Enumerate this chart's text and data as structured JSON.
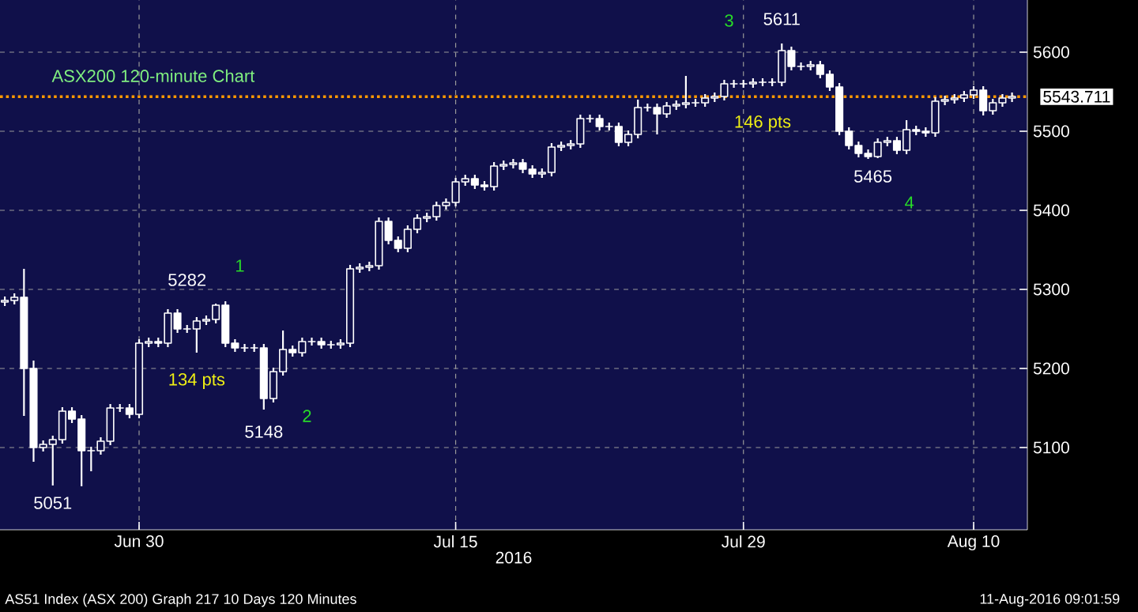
{
  "chart_data": {
    "type": "candlestick",
    "title": "ASX200 120-minute Chart",
    "xlabel": "2016",
    "color": "#ffffff",
    "grid": true,
    "categories": [
      null,
      null,
      null,
      null,
      null,
      null,
      null,
      null,
      null,
      null,
      null,
      null,
      null,
      null,
      "Jun 30",
      null,
      null,
      null,
      null,
      null,
      null,
      null,
      null,
      null,
      null,
      null,
      null,
      null,
      null,
      null,
      null,
      null,
      null,
      null,
      null,
      null,
      null,
      null,
      null,
      null,
      null,
      null,
      null,
      null,
      null,
      null,
      null,
      "Jul 15",
      null,
      null,
      null,
      null,
      null,
      null,
      null,
      null,
      null,
      null,
      null,
      null,
      null,
      null,
      null,
      null,
      null,
      null,
      null,
      null,
      null,
      null,
      null,
      null,
      null,
      null,
      null,
      null,
      null,
      "Jul 29",
      null,
      null,
      null,
      null,
      null,
      null,
      null,
      null,
      null,
      null,
      null,
      null,
      null,
      null,
      null,
      null,
      null,
      null,
      null,
      null,
      null,
      null,
      null,
      "Aug 10",
      null,
      null,
      null,
      null
    ],
    "ohlc": [
      [
        5284,
        5291,
        5279,
        5286
      ],
      [
        5286,
        5295,
        5281,
        5290
      ],
      [
        5290,
        5326,
        5140,
        5200
      ],
      [
        5200,
        5210,
        5082,
        5100
      ],
      [
        5100,
        5109,
        5095,
        5104
      ],
      [
        5104,
        5115,
        5052,
        5110
      ],
      [
        5110,
        5151,
        5105,
        5146
      ],
      [
        5146,
        5151,
        5131,
        5136
      ],
      [
        5136,
        5141,
        5051,
        5096
      ],
      [
        5096,
        5101,
        5070,
        5096
      ],
      [
        5096,
        5113,
        5091,
        5108
      ],
      [
        5108,
        5155,
        5103,
        5150
      ],
      [
        5150,
        5155,
        5145,
        5150
      ],
      [
        5150,
        5155,
        5137,
        5142
      ],
      [
        5142,
        5237,
        5137,
        5232
      ],
      [
        5232,
        5239,
        5227,
        5234
      ],
      [
        5234,
        5239,
        5227,
        5232
      ],
      [
        5232,
        5275,
        5227,
        5270
      ],
      [
        5270,
        5275,
        5245,
        5250
      ],
      [
        5250,
        5255,
        5245,
        5250
      ],
      [
        5250,
        5265,
        5220,
        5260
      ],
      [
        5260,
        5267,
        5255,
        5262
      ],
      [
        5262,
        5282,
        5257,
        5280
      ],
      [
        5280,
        5285,
        5227,
        5232
      ],
      [
        5232,
        5237,
        5221,
        5226
      ],
      [
        5226,
        5231,
        5221,
        5226
      ],
      [
        5226,
        5231,
        5221,
        5226
      ],
      [
        5226,
        5231,
        5148,
        5162
      ],
      [
        5162,
        5201,
        5157,
        5196
      ],
      [
        5196,
        5248,
        5191,
        5224
      ],
      [
        5224,
        5229,
        5215,
        5220
      ],
      [
        5220,
        5239,
        5215,
        5234
      ],
      [
        5234,
        5239,
        5229,
        5234
      ],
      [
        5234,
        5239,
        5225,
        5230
      ],
      [
        5230,
        5235,
        5225,
        5230
      ],
      [
        5230,
        5237,
        5225,
        5232
      ],
      [
        5232,
        5331,
        5227,
        5326
      ],
      [
        5326,
        5333,
        5321,
        5328
      ],
      [
        5328,
        5335,
        5323,
        5330
      ],
      [
        5330,
        5391,
        5325,
        5386
      ],
      [
        5386,
        5391,
        5357,
        5362
      ],
      [
        5362,
        5367,
        5347,
        5352
      ],
      [
        5352,
        5381,
        5347,
        5376
      ],
      [
        5376,
        5395,
        5371,
        5390
      ],
      [
        5390,
        5397,
        5385,
        5392
      ],
      [
        5392,
        5411,
        5387,
        5406
      ],
      [
        5406,
        5415,
        5401,
        5410
      ],
      [
        5410,
        5441,
        5405,
        5436
      ],
      [
        5436,
        5445,
        5431,
        5440
      ],
      [
        5440,
        5445,
        5427,
        5432
      ],
      [
        5432,
        5437,
        5425,
        5430
      ],
      [
        5430,
        5461,
        5425,
        5456
      ],
      [
        5456,
        5463,
        5451,
        5458
      ],
      [
        5458,
        5465,
        5453,
        5460
      ],
      [
        5460,
        5465,
        5447,
        5452
      ],
      [
        5452,
        5457,
        5441,
        5446
      ],
      [
        5446,
        5453,
        5441,
        5448
      ],
      [
        5448,
        5485,
        5443,
        5480
      ],
      [
        5480,
        5487,
        5475,
        5482
      ],
      [
        5482,
        5489,
        5477,
        5484
      ],
      [
        5484,
        5521,
        5479,
        5516
      ],
      [
        5516,
        5521,
        5511,
        5516
      ],
      [
        5516,
        5521,
        5501,
        5506
      ],
      [
        5506,
        5511,
        5501,
        5506
      ],
      [
        5506,
        5511,
        5481,
        5486
      ],
      [
        5486,
        5501,
        5481,
        5496
      ],
      [
        5496,
        5540,
        5491,
        5530
      ],
      [
        5530,
        5535,
        5525,
        5530
      ],
      [
        5530,
        5535,
        5496,
        5522
      ],
      [
        5522,
        5537,
        5517,
        5532
      ],
      [
        5532,
        5539,
        5527,
        5534
      ],
      [
        5534,
        5570,
        5529,
        5536
      ],
      [
        5536,
        5541,
        5531,
        5536
      ],
      [
        5536,
        5547,
        5531,
        5542
      ],
      [
        5542,
        5549,
        5537,
        5544
      ],
      [
        5544,
        5565,
        5539,
        5560
      ],
      [
        5560,
        5565,
        5555,
        5560
      ],
      [
        5560,
        5565,
        5555,
        5560
      ],
      [
        5560,
        5567,
        5555,
        5562
      ],
      [
        5562,
        5567,
        5557,
        5562
      ],
      [
        5562,
        5567,
        5557,
        5562
      ],
      [
        5562,
        5611,
        5557,
        5602
      ],
      [
        5602,
        5607,
        5577,
        5582
      ],
      [
        5582,
        5587,
        5577,
        5582
      ],
      [
        5582,
        5589,
        5577,
        5584
      ],
      [
        5584,
        5589,
        5567,
        5572
      ],
      [
        5572,
        5577,
        5551,
        5556
      ],
      [
        5556,
        5561,
        5495,
        5500
      ],
      [
        5500,
        5505,
        5477,
        5482
      ],
      [
        5482,
        5487,
        5467,
        5472
      ],
      [
        5472,
        5477,
        5465,
        5468
      ],
      [
        5468,
        5491,
        5466,
        5486
      ],
      [
        5486,
        5493,
        5481,
        5488
      ],
      [
        5488,
        5493,
        5471,
        5476
      ],
      [
        5476,
        5514,
        5471,
        5502
      ],
      [
        5502,
        5507,
        5495,
        5500
      ],
      [
        5500,
        5505,
        5493,
        5498
      ],
      [
        5498,
        5543,
        5493,
        5538
      ],
      [
        5538,
        5545,
        5533,
        5540
      ],
      [
        5540,
        5547,
        5535,
        5542
      ],
      [
        5542,
        5551,
        5537,
        5546
      ],
      [
        5546,
        5557,
        5541,
        5552
      ],
      [
        5552,
        5557,
        5520,
        5526
      ],
      [
        5526,
        5541,
        5521,
        5536
      ],
      [
        5536,
        5547,
        5531,
        5542
      ],
      [
        5542,
        5549,
        5537,
        5544
      ]
    ],
    "ylim": [
      4996,
      5666
    ],
    "yticks": [
      5100,
      5200,
      5300,
      5400,
      5500,
      5600
    ],
    "ref_lines": [
      {
        "axis": "y",
        "value": 5543.711,
        "label": "5543.711",
        "color": "#ff9900",
        "line_style": "dotted"
      }
    ],
    "annotations": [
      "5282",
      "1",
      "134 pts",
      "5148",
      "2",
      "5051",
      "3",
      "5611",
      "146 pts",
      "5465",
      "4",
      "AS51 Index (ASX 200) Graph 217 10 Days 120 Minutes",
      "11-Aug-2016 09:01:59"
    ]
  }
}
